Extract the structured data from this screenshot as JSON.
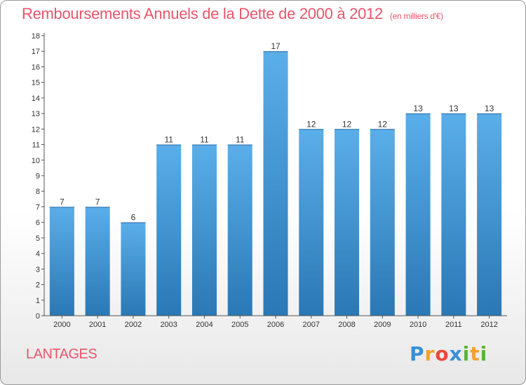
{
  "title": "Remboursements Annuels de la Dette de 2000 à 2012",
  "subtitle": "(en milliers d'€)",
  "commune": "LANTAGES",
  "logo": {
    "text": "Proxiti",
    "letters": [
      {
        "ch": "P",
        "color": "#3a8fd6"
      },
      {
        "ch": "r",
        "color": "#f3a12b"
      },
      {
        "ch": "o",
        "color": "#e84a3c"
      },
      {
        "ch": "x",
        "color": "#3a8fd6"
      },
      {
        "ch": "i",
        "color": "#5bb534"
      },
      {
        "ch": "t",
        "color": "#f3a12b"
      },
      {
        "ch": "i",
        "color": "#5bb534"
      }
    ]
  },
  "colors": {
    "title": "#e8556b",
    "bar_top": "#5aaee9",
    "bar_bottom": "#2a78b5",
    "axis": "#555555"
  },
  "chart_data": {
    "type": "bar",
    "categories": [
      "2000",
      "2001",
      "2002",
      "2003",
      "2004",
      "2005",
      "2006",
      "2007",
      "2008",
      "2009",
      "2010",
      "2011",
      "2012"
    ],
    "values": [
      7,
      7,
      6,
      11,
      11,
      11,
      17,
      12,
      12,
      12,
      13,
      13,
      13
    ],
    "ylim": [
      0,
      18
    ],
    "yticks": [
      0,
      1,
      2,
      3,
      4,
      5,
      6,
      7,
      8,
      9,
      10,
      11,
      12,
      13,
      14,
      15,
      16,
      17,
      18
    ],
    "grid": false,
    "data_labels": true,
    "xlabel": "",
    "ylabel": ""
  }
}
